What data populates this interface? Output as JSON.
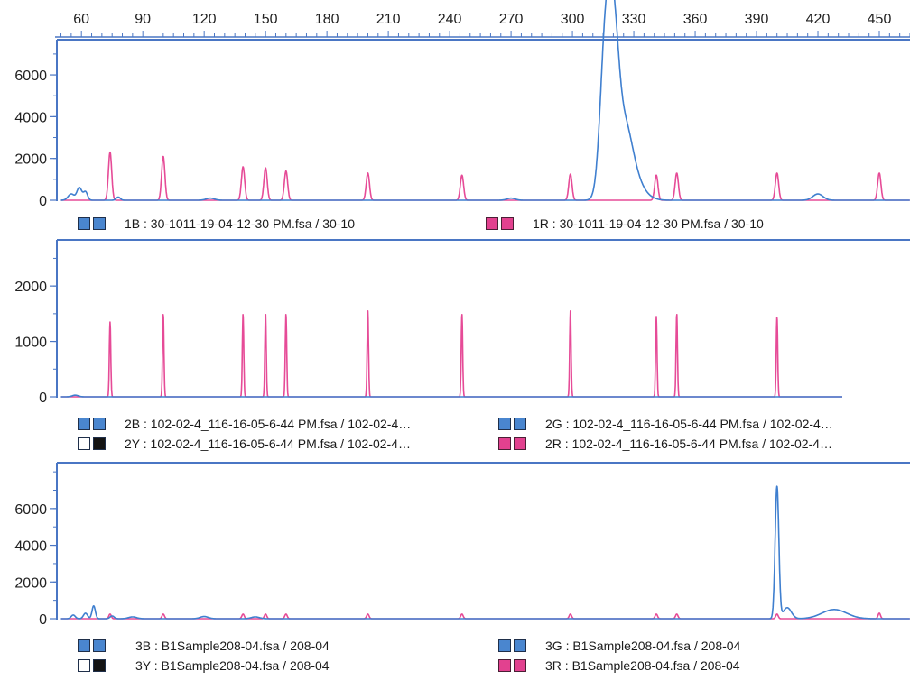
{
  "colors": {
    "blue": "#3f7fcf",
    "pink": "#e64b97",
    "frame": "#4a76c4",
    "swatch_blue": "#4a86cf",
    "swatch_pink": "#e2418f",
    "swatch_black": "#141414",
    "swatch_white": "#ffffff"
  },
  "chart_data": {
    "type": "line",
    "x_axis": {
      "ticks": [
        60,
        90,
        120,
        150,
        180,
        210,
        240,
        270,
        300,
        330,
        360,
        390,
        420,
        450
      ],
      "range": [
        48,
        465
      ]
    },
    "panels": [
      {
        "ylim": [
          0,
          7600
        ],
        "yticks": [
          0,
          2000,
          4000,
          6000
        ],
        "legend": [
          {
            "swatch": [
              "blue",
              "blue"
            ],
            "label": "1B : 30-1011-19-04-12-30 PM.fsa / 30-10"
          },
          {
            "swatch": [
              "pink",
              "pink"
            ],
            "label": "1R : 30-1011-19-04-12-30 PM.fsa / 30-10"
          }
        ],
        "series": [
          {
            "color": "pink",
            "x_end": 465,
            "peaks": [
              [
                74,
                2300,
                0.8
              ],
              [
                100,
                2100,
                0.8
              ],
              [
                139,
                1600,
                0.8
              ],
              [
                150,
                1550,
                0.8
              ],
              [
                160,
                1400,
                0.8
              ],
              [
                200,
                1300,
                0.8
              ],
              [
                246,
                1200,
                0.8
              ],
              [
                299,
                1250,
                0.8
              ],
              [
                341,
                1200,
                0.8
              ],
              [
                351,
                1300,
                0.8
              ],
              [
                400,
                1300,
                0.8
              ],
              [
                450,
                1300,
                0.8
              ]
            ]
          },
          {
            "color": "blue",
            "x_end": 465,
            "peaks": [
              [
                55,
                300,
                1.5
              ],
              [
                59,
                600,
                1.2
              ],
              [
                62,
                400,
                1
              ],
              [
                78,
                150,
                1
              ],
              [
                123,
                100,
                2
              ],
              [
                270,
                100,
                2
              ],
              [
                316,
                7000,
                2.5
              ],
              [
                320,
                6600,
                2.5
              ],
              [
                325,
                3200,
                4
              ],
              [
                330,
                800,
                5
              ],
              [
                420,
                300,
                2.5
              ]
            ]
          }
        ]
      },
      {
        "ylim": [
          0,
          2800
        ],
        "yticks": [
          0,
          1000,
          2000
        ],
        "legend": [
          {
            "swatch": [
              "blue",
              "blue"
            ],
            "label": "2B : 102-02-4_116-16-05-6-44 PM.fsa / 102-02-4…"
          },
          {
            "swatch": [
              "blue",
              "blue"
            ],
            "label": "2G : 102-02-4_116-16-05-6-44 PM.fsa / 102-02-4…"
          },
          {
            "swatch": [
              "white",
              "black"
            ],
            "label": "2Y : 102-02-4_116-16-05-6-44 PM.fsa / 102-02-4…"
          },
          {
            "swatch": [
              "pink",
              "pink"
            ],
            "label": "2R : 102-02-4_116-16-05-6-44 PM.fsa / 102-02-4…"
          }
        ],
        "series": [
          {
            "color": "pink",
            "x_end": 432,
            "peaks": [
              [
                74,
                1350,
                0.35
              ],
              [
                100,
                1500,
                0.35
              ],
              [
                139,
                1500,
                0.35
              ],
              [
                150,
                1500,
                0.35
              ],
              [
                160,
                1500,
                0.35
              ],
              [
                200,
                1550,
                0.35
              ],
              [
                246,
                1500,
                0.35
              ],
              [
                299,
                1550,
                0.35
              ],
              [
                341,
                1450,
                0.35
              ],
              [
                351,
                1500,
                0.35
              ],
              [
                400,
                1450,
                0.35
              ]
            ]
          },
          {
            "color": "blue",
            "x_end": 432,
            "peaks": [
              [
                57,
                30,
                1.5
              ]
            ]
          }
        ]
      },
      {
        "ylim": [
          0,
          8400
        ],
        "yticks": [
          0,
          2000,
          4000,
          6000
        ],
        "legend": [
          {
            "swatch": [
              "blue",
              "blue"
            ],
            "label": "3B : B1Sample208-04.fsa / 208-04"
          },
          {
            "swatch": [
              "blue",
              "blue"
            ],
            "label": "3G : B1Sample208-04.fsa / 208-04"
          },
          {
            "swatch": [
              "white",
              "black"
            ],
            "label": "3Y : B1Sample208-04.fsa / 208-04"
          },
          {
            "swatch": [
              "pink",
              "pink"
            ],
            "label": "3R : B1Sample208-04.fsa / 208-04"
          }
        ],
        "series": [
          {
            "color": "pink",
            "x_end": 465,
            "peaks": [
              [
                74,
                250,
                0.6
              ],
              [
                100,
                250,
                0.6
              ],
              [
                139,
                250,
                0.6
              ],
              [
                150,
                250,
                0.6
              ],
              [
                160,
                250,
                0.6
              ],
              [
                200,
                250,
                0.6
              ],
              [
                246,
                250,
                0.6
              ],
              [
                299,
                250,
                0.6
              ],
              [
                341,
                250,
                0.6
              ],
              [
                351,
                250,
                0.6
              ],
              [
                400,
                250,
                0.6
              ],
              [
                450,
                300,
                0.6
              ]
            ]
          },
          {
            "color": "blue",
            "x_end": 465,
            "peaks": [
              [
                56,
                200,
                1
              ],
              [
                62,
                300,
                1
              ],
              [
                66,
                700,
                0.8
              ],
              [
                75,
                150,
                1
              ],
              [
                85,
                100,
                2
              ],
              [
                120,
                120,
                2
              ],
              [
                145,
                100,
                2
              ],
              [
                400,
                7200,
                0.9
              ],
              [
                405,
                600,
                2
              ],
              [
                428,
                500,
                6
              ]
            ]
          }
        ]
      }
    ]
  }
}
